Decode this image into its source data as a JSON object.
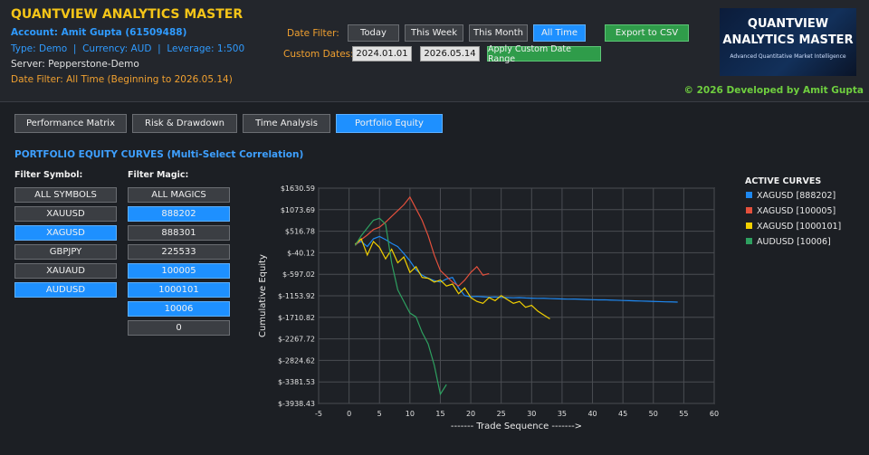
{
  "header": {
    "title": "QUANTVIEW ANALYTICS MASTER",
    "account": "Account: Amit Gupta (61509488)",
    "account_type": "Type: Demo  |  Currency: AUD  |  Leverage: 1:500",
    "server": "Server: Pepperstone-Demo",
    "date_filter_status": "Date Filter: All Time (Beginning to 2026.05.14)"
  },
  "date_filter": {
    "label": "Date Filter:",
    "buttons": [
      {
        "label": "Today",
        "active": false
      },
      {
        "label": "This Week",
        "active": false
      },
      {
        "label": "This Month",
        "active": false
      },
      {
        "label": "All Time",
        "active": true
      }
    ]
  },
  "export_button": "Export to CSV",
  "custom_dates": {
    "label": "Custom Dates:",
    "from": "2024.01.01",
    "to": "2026.05.14",
    "apply": "Apply Custom Date Range"
  },
  "logo": {
    "line1": "QUANTVIEW",
    "line2": "ANALYTICS MASTER",
    "tagline": "Advanced Quantitative Market Intelligence"
  },
  "credit": "© 2026 Developed by Amit Gupta",
  "tabs": [
    {
      "label": "Performance Matrix",
      "active": false
    },
    {
      "label": "Risk & Drawdown",
      "active": false
    },
    {
      "label": "Time Analysis",
      "active": false
    },
    {
      "label": "Portfolio Equity",
      "active": true
    }
  ],
  "section_title": "PORTFOLIO EQUITY CURVES (Multi-Select Correlation)",
  "symbol_filter": {
    "label": "Filter Symbol:",
    "options": [
      {
        "label": "ALL SYMBOLS",
        "active": false
      },
      {
        "label": "XAUUSD",
        "active": false
      },
      {
        "label": "XAGUSD",
        "active": true
      },
      {
        "label": "GBPJPY",
        "active": false
      },
      {
        "label": "XAUAUD",
        "active": false
      },
      {
        "label": "AUDUSD",
        "active": true
      }
    ]
  },
  "magic_filter": {
    "label": "Filter Magic:",
    "options": [
      {
        "label": "ALL MAGICS",
        "active": false
      },
      {
        "label": "888202",
        "active": true
      },
      {
        "label": "888301",
        "active": false
      },
      {
        "label": "225533",
        "active": false
      },
      {
        "label": "100005",
        "active": true
      },
      {
        "label": "1000101",
        "active": true
      },
      {
        "label": "10006",
        "active": true
      },
      {
        "label": "0",
        "active": false
      }
    ]
  },
  "chart_data": {
    "type": "line",
    "ylabel": "Cumulative Equity",
    "xlabel": "------- Trade Sequence ------->",
    "legend_title": "ACTIVE CURVES",
    "grid": true,
    "xlim": [
      -5,
      60
    ],
    "xticks": [
      -5,
      0,
      5,
      10,
      15,
      20,
      25,
      30,
      35,
      40,
      45,
      50,
      55,
      60
    ],
    "ylim": [
      -3938.43,
      1630.59
    ],
    "yticks": [
      {
        "value": 1630.59,
        "label": "$1630.59"
      },
      {
        "value": 1073.69,
        "label": "$1073.69"
      },
      {
        "value": 516.78,
        "label": "$516.78"
      },
      {
        "value": -40.12,
        "label": "$-40.12"
      },
      {
        "value": -597.02,
        "label": "$-597.02"
      },
      {
        "value": -1153.92,
        "label": "$-1153.92"
      },
      {
        "value": -1710.82,
        "label": "$-1710.82"
      },
      {
        "value": -2267.72,
        "label": "$-2267.72"
      },
      {
        "value": -2824.62,
        "label": "$-2824.62"
      },
      {
        "value": -3381.53,
        "label": "$-3381.53"
      },
      {
        "value": -3938.43,
        "label": "$-3938.43"
      }
    ],
    "x": [
      1,
      2,
      3,
      4,
      5,
      6,
      7,
      8,
      9,
      10,
      11,
      12,
      13,
      14,
      15,
      16,
      17,
      18,
      19,
      20,
      21,
      22,
      23,
      24,
      25,
      26,
      27,
      28,
      29,
      30,
      31,
      32,
      33,
      34,
      35,
      36,
      37,
      38,
      39,
      40,
      41,
      42,
      43,
      44,
      45,
      46,
      47,
      48,
      49,
      50,
      51,
      52,
      53,
      54
    ],
    "series": [
      {
        "name": "XAGUSD [888202]",
        "color": "#1e88f0",
        "values": [
          180,
          250,
          120,
          320,
          380,
          300,
          200,
          120,
          -60,
          -250,
          -480,
          -620,
          -700,
          -760,
          -800,
          -720,
          -680,
          -950,
          -1150,
          -1180,
          -1170,
          -1180,
          -1190,
          -1185,
          -1195,
          -1200,
          -1205,
          -1200,
          -1210,
          -1215,
          -1220,
          -1218,
          -1225,
          -1230,
          -1235,
          -1240,
          -1238,
          -1245,
          -1250,
          -1255,
          -1260,
          -1258,
          -1265,
          -1270,
          -1275,
          -1280,
          -1285,
          -1290,
          -1295,
          -1300,
          -1305,
          -1310,
          -1312,
          -1318
        ]
      },
      {
        "name": "XAGUSD [100005]",
        "color": "#e4503c",
        "values": [
          150,
          300,
          420,
          560,
          620,
          750,
          900,
          1050,
          1200,
          1400,
          1100,
          800,
          400,
          -100,
          -500,
          -650,
          -800,
          -900,
          -750,
          -550,
          -400,
          -620,
          -580,
          null,
          null,
          null,
          null,
          null,
          null,
          null,
          null,
          null,
          null,
          null,
          null,
          null,
          null,
          null,
          null,
          null,
          null,
          null,
          null,
          null,
          null,
          null,
          null,
          null,
          null,
          null,
          null,
          null,
          null,
          null
        ]
      },
      {
        "name": "XAGUSD [1000101]",
        "color": "#f2d000",
        "values": [
          180,
          320,
          -100,
          250,
          100,
          -200,
          50,
          -300,
          -150,
          -550,
          -400,
          -680,
          -700,
          -800,
          -750,
          -900,
          -850,
          -1100,
          -950,
          -1200,
          -1300,
          -1350,
          -1200,
          -1280,
          -1150,
          -1250,
          -1350,
          -1300,
          -1450,
          -1400,
          -1550,
          -1650,
          -1750,
          null,
          null,
          null,
          null,
          null,
          null,
          null,
          null,
          null,
          null,
          null,
          null,
          null,
          null,
          null,
          null,
          null,
          null,
          null,
          null,
          null
        ]
      },
      {
        "name": "AUDUSD [10006]",
        "color": "#2ea060",
        "values": [
          150,
          400,
          600,
          800,
          850,
          700,
          -300,
          -1000,
          -1300,
          -1600,
          -1700,
          -2100,
          -2400,
          -2950,
          -3700,
          -3450,
          null,
          null,
          null,
          null,
          null,
          null,
          null,
          null,
          null,
          null,
          null,
          null,
          null,
          null,
          null,
          null,
          null,
          null,
          null,
          null,
          null,
          null,
          null,
          null,
          null,
          null,
          null,
          null,
          null,
          null,
          null,
          null,
          null,
          null,
          null,
          null,
          null,
          null
        ]
      }
    ]
  }
}
